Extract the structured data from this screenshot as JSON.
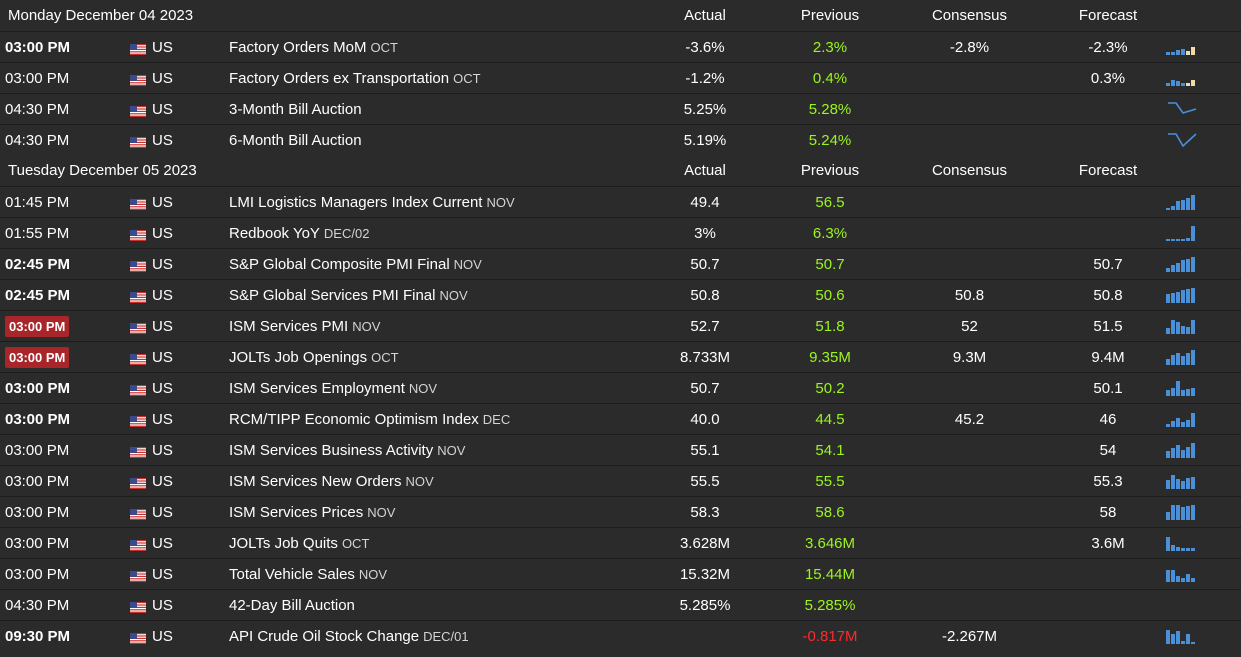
{
  "colors": {
    "background": "#2b2b2b",
    "positive": "#9bf51e",
    "negative": "#ff2b2b",
    "highlight_time": "#a8262a",
    "spark_blue": "#4a90d9",
    "spark_beige": "#f1dba8"
  },
  "columns": {
    "actual": "Actual",
    "previous": "Previous",
    "consensus": "Consensus",
    "forecast": "Forecast"
  },
  "days": [
    {
      "date": "Monday December 04 2023",
      "events": [
        {
          "time": "03:00 PM",
          "time_style": "bold",
          "country": "US",
          "event": "Factory Orders MoM",
          "ref": "OCT",
          "actual": "-3.6%",
          "previous": "2.3%",
          "previous_color": "green",
          "consensus": "-2.8%",
          "forecast": "-2.3%",
          "spark": "bars-mixed-1"
        },
        {
          "time": "03:00 PM",
          "time_style": "normal",
          "country": "US",
          "event": "Factory Orders ex Transportation",
          "ref": "OCT",
          "actual": "-1.2%",
          "previous": "0.4%",
          "previous_color": "green",
          "consensus": "",
          "forecast": "0.3%",
          "spark": "bars-mixed-2"
        },
        {
          "time": "04:30 PM",
          "time_style": "normal",
          "country": "US",
          "event": "3-Month Bill Auction",
          "ref": "",
          "actual": "5.25%",
          "previous": "5.28%",
          "previous_color": "green",
          "consensus": "",
          "forecast": "",
          "spark": "line-1"
        },
        {
          "time": "04:30 PM",
          "time_style": "normal",
          "country": "US",
          "event": "6-Month Bill Auction",
          "ref": "",
          "actual": "5.19%",
          "previous": "5.24%",
          "previous_color": "green",
          "consensus": "",
          "forecast": "",
          "spark": "line-2"
        }
      ]
    },
    {
      "date": "Tuesday December 05 2023",
      "events": [
        {
          "time": "01:45 PM",
          "time_style": "normal",
          "country": "US",
          "event": "LMI Logistics Managers Index Current",
          "ref": "NOV",
          "actual": "49.4",
          "previous": "56.5",
          "previous_color": "green",
          "consensus": "",
          "forecast": "",
          "spark": "bars-up"
        },
        {
          "time": "01:55 PM",
          "time_style": "normal",
          "country": "US",
          "event": "Redbook YoY",
          "ref": "DEC/02",
          "actual": "3%",
          "previous": "6.3%",
          "previous_color": "green",
          "consensus": "",
          "forecast": "",
          "spark": "bars-flat-up"
        },
        {
          "time": "02:45 PM",
          "time_style": "bold",
          "country": "US",
          "event": "S&P Global Composite PMI Final",
          "ref": "NOV",
          "actual": "50.7",
          "previous": "50.7",
          "previous_color": "green",
          "consensus": "",
          "forecast": "50.7",
          "spark": "bars-up2"
        },
        {
          "time": "02:45 PM",
          "time_style": "bold",
          "country": "US",
          "event": "S&P Global Services PMI Final",
          "ref": "NOV",
          "actual": "50.8",
          "previous": "50.6",
          "previous_color": "green",
          "consensus": "50.8",
          "forecast": "50.8",
          "spark": "bars-up3"
        },
        {
          "time": "03:00 PM",
          "time_style": "red",
          "country": "US",
          "event": "ISM Services PMI",
          "ref": "NOV",
          "actual": "52.7",
          "previous": "51.8",
          "previous_color": "green",
          "consensus": "52",
          "forecast": "51.5",
          "spark": "bars-hump"
        },
        {
          "time": "03:00 PM",
          "time_style": "red",
          "country": "US",
          "event": "JOLTs Job Openings",
          "ref": "OCT",
          "actual": "8.733M",
          "previous": "9.35M",
          "previous_color": "green",
          "consensus": "9.3M",
          "forecast": "9.4M",
          "spark": "bars-up4"
        },
        {
          "time": "03:00 PM",
          "time_style": "bold",
          "country": "US",
          "event": "ISM Services Employment",
          "ref": "NOV",
          "actual": "50.7",
          "previous": "50.2",
          "previous_color": "green",
          "consensus": "",
          "forecast": "50.1",
          "spark": "bars-hump2"
        },
        {
          "time": "03:00 PM",
          "time_style": "bold",
          "country": "US",
          "event": "RCM/TIPP Economic Optimism Index",
          "ref": "DEC",
          "actual": "40.0",
          "previous": "44.5",
          "previous_color": "green",
          "consensus": "45.2",
          "forecast": "46",
          "spark": "bars-up5"
        },
        {
          "time": "03:00 PM",
          "time_style": "normal",
          "country": "US",
          "event": "ISM Services Business Activity",
          "ref": "NOV",
          "actual": "55.1",
          "previous": "54.1",
          "previous_color": "green",
          "consensus": "",
          "forecast": "54",
          "spark": "bars-up6"
        },
        {
          "time": "03:00 PM",
          "time_style": "normal",
          "country": "US",
          "event": "ISM Services New Orders",
          "ref": "NOV",
          "actual": "55.5",
          "previous": "55.5",
          "previous_color": "green",
          "consensus": "",
          "forecast": "55.3",
          "spark": "bars-hump3"
        },
        {
          "time": "03:00 PM",
          "time_style": "normal",
          "country": "US",
          "event": "ISM Services Prices",
          "ref": "NOV",
          "actual": "58.3",
          "previous": "58.6",
          "previous_color": "green",
          "consensus": "",
          "forecast": "58",
          "spark": "bars-full"
        },
        {
          "time": "03:00 PM",
          "time_style": "normal",
          "country": "US",
          "event": "JOLTs Job Quits",
          "ref": "OCT",
          "actual": "3.628M",
          "previous": "3.646M",
          "previous_color": "green",
          "consensus": "",
          "forecast": "3.6M",
          "spark": "bars-down"
        },
        {
          "time": "03:00 PM",
          "time_style": "normal",
          "country": "US",
          "event": "Total Vehicle Sales",
          "ref": "NOV",
          "actual": "15.32M",
          "previous": "15.44M",
          "previous_color": "green",
          "consensus": "",
          "forecast": "",
          "spark": "bars-down2"
        },
        {
          "time": "04:30 PM",
          "time_style": "normal",
          "country": "US",
          "event": "42-Day Bill Auction",
          "ref": "",
          "actual": "5.285%",
          "previous": "5.285%",
          "previous_color": "green",
          "consensus": "",
          "forecast": "",
          "spark": ""
        },
        {
          "time": "09:30 PM",
          "time_style": "bold",
          "country": "US",
          "event": "API Crude Oil Stock Change",
          "ref": "DEC/01",
          "actual": "",
          "previous": "-0.817M",
          "previous_color": "red",
          "consensus": "-2.267M",
          "forecast": "",
          "spark": "bars-down3"
        }
      ]
    }
  ]
}
